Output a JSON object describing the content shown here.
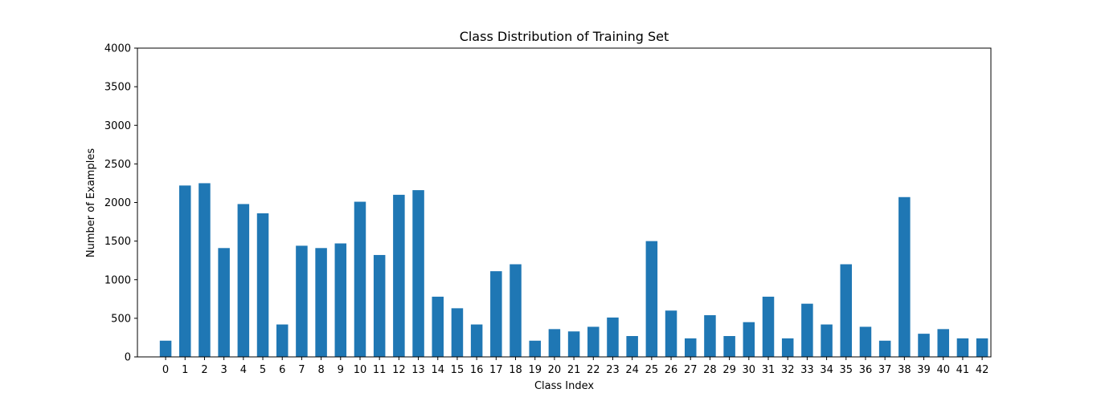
{
  "chart_data": {
    "type": "bar",
    "title": "Class Distribution of Training Set",
    "xlabel": "Class Index",
    "ylabel": "Number of Examples",
    "ylim": [
      0,
      4000
    ],
    "yticks": [
      0,
      500,
      1000,
      1500,
      2000,
      2500,
      3000,
      3500,
      4000
    ],
    "categories": [
      "0",
      "1",
      "2",
      "3",
      "4",
      "5",
      "6",
      "7",
      "8",
      "9",
      "10",
      "11",
      "12",
      "13",
      "14",
      "15",
      "16",
      "17",
      "18",
      "19",
      "20",
      "21",
      "22",
      "23",
      "24",
      "25",
      "26",
      "27",
      "28",
      "29",
      "30",
      "31",
      "32",
      "33",
      "34",
      "35",
      "36",
      "37",
      "38",
      "39",
      "40",
      "41",
      "42"
    ],
    "values": [
      210,
      2220,
      2250,
      1410,
      1980,
      1860,
      420,
      1440,
      1410,
      1470,
      2010,
      1320,
      2100,
      2160,
      780,
      630,
      420,
      1110,
      1200,
      210,
      360,
      330,
      390,
      510,
      270,
      1500,
      600,
      240,
      540,
      270,
      450,
      780,
      240,
      689,
      420,
      1200,
      390,
      210,
      2070,
      300,
      360,
      240,
      240
    ],
    "bar_color": "#1f77b4",
    "grid": false,
    "legend": "none"
  }
}
